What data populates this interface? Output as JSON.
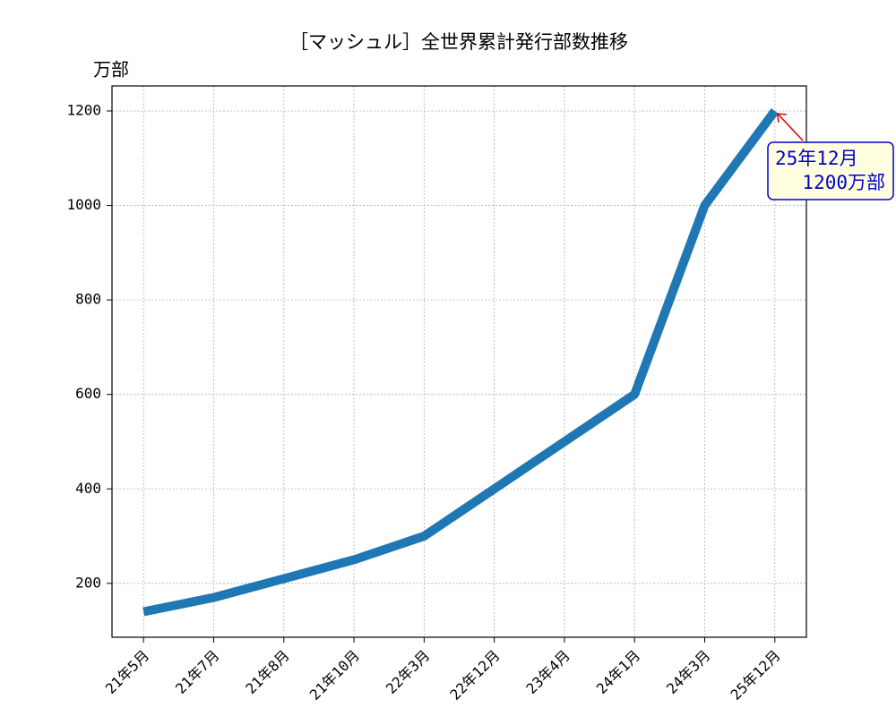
{
  "chart_data": {
    "type": "line",
    "title": "［マッシュル］全世界累計発行部数推移",
    "ylabel": "万部",
    "categories": [
      "21年5月",
      "21年7月",
      "21年8月",
      "21年10月",
      "22年3月",
      "22年12月",
      "23年4月",
      "24年1月",
      "24年3月",
      "25年12月"
    ],
    "values": [
      140,
      170,
      210,
      250,
      300,
      400,
      500,
      600,
      1000,
      1200
    ],
    "color": "#1f77b4",
    "ylim": [
      86,
      1253
    ],
    "yticks": [
      200,
      400,
      600,
      800,
      1000,
      1200
    ],
    "grid": true,
    "annotation": {
      "lines": [
        "25年12月",
        "1200万部"
      ],
      "color": "#0000cc",
      "arrow_color": "#dd0000",
      "box_fill": "#ffffe0"
    }
  }
}
